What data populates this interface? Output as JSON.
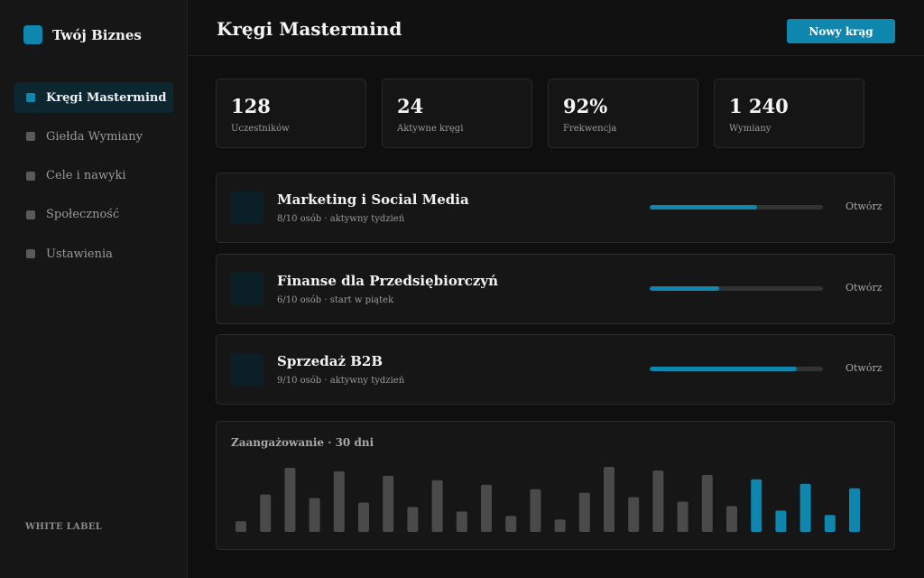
{
  "brand": {
    "name": "Twój Biznes",
    "color": "#0e86ad"
  },
  "sidebar": {
    "items": [
      {
        "label": "Kręgi Mastermind",
        "active": true
      },
      {
        "label": "Giełda Wymiany",
        "active": false
      },
      {
        "label": "Cele i nawyki",
        "active": false
      },
      {
        "label": "Społeczność",
        "active": false
      },
      {
        "label": "Ustawienia",
        "active": false
      }
    ],
    "footer_label": "WHITE LABEL"
  },
  "header": {
    "title": "Kręgi Mastermind",
    "new_button_label": "Nowy krąg"
  },
  "stats": [
    {
      "value": "128",
      "label": "Uczestników"
    },
    {
      "value": "24",
      "label": "Aktywne kręgi"
    },
    {
      "value": "92%",
      "label": "Frekwencja"
    },
    {
      "value": "1 240",
      "label": "Wymiany"
    }
  ],
  "circles": [
    {
      "name": "Marketing i Social Media",
      "meta": "8/10 osób · aktywny tydzień",
      "progress": 0.62,
      "action": "Otwórz"
    },
    {
      "name": "Finanse dla Przedsiębiorczyń",
      "meta": "6/10 osób · start w piątek",
      "progress": 0.4,
      "action": "Otwórz"
    },
    {
      "name": "Sprzedaż B2B",
      "meta": "9/10 osób · aktywny tydzień",
      "progress": 0.85,
      "action": "Otwórz"
    }
  ],
  "engagement": {
    "title": "Zaangażowanie · 30 dni",
    "colors": {
      "past": "#4a4a4a",
      "recent": "#0e86ad"
    }
  },
  "chart_data": {
    "type": "bar",
    "title": "Zaangażowanie · 30 dni",
    "values": [
      12,
      42,
      72,
      38,
      68,
      33,
      63,
      28,
      58,
      23,
      53,
      18,
      48,
      14,
      44,
      73,
      39,
      69,
      34,
      64,
      29,
      59,
      24,
      54,
      19,
      49
    ],
    "highlight_from_index": 21
  }
}
